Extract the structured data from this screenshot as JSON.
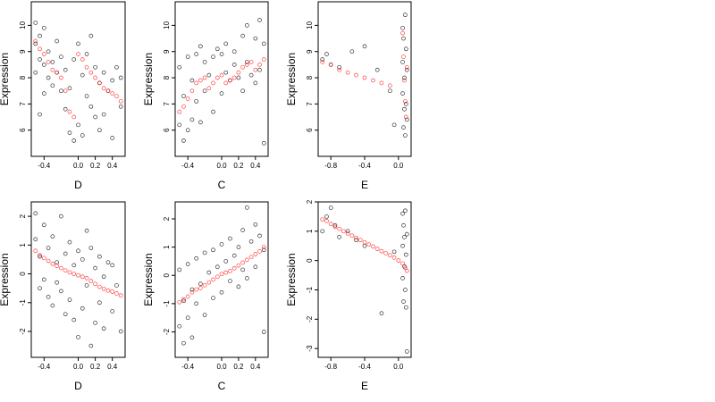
{
  "chart_data": [
    {
      "type": "scatter",
      "xlabel": "D",
      "ylabel": "Expression",
      "xlim": [
        -0.55,
        0.55
      ],
      "ylim": [
        5.0,
        10.9
      ],
      "xticks": [
        -0.4,
        0.0,
        0.2,
        0.4
      ],
      "xtick_labels": [
        "-0.4",
        "0.0",
        "0.2",
        "0.4"
      ],
      "yticks": [
        6,
        7,
        8,
        9,
        10
      ],
      "ytick_labels": [
        "6",
        "7",
        "8",
        "9",
        "10"
      ],
      "grid": false,
      "series": [
        {
          "color": "#000000",
          "marker": "open-circle",
          "x": [
            -0.5,
            -0.5,
            -0.5,
            -0.45,
            -0.45,
            -0.45,
            -0.4,
            -0.4,
            -0.4,
            -0.35,
            -0.35,
            -0.3,
            -0.3,
            -0.25,
            -0.25,
            -0.2,
            -0.2,
            -0.15,
            -0.15,
            -0.1,
            -0.1,
            -0.05,
            -0.05,
            0.0,
            0.0,
            0.05,
            0.05,
            0.1,
            0.1,
            0.15,
            0.15,
            0.2,
            0.2,
            0.25,
            0.25,
            0.3,
            0.3,
            0.35,
            0.4,
            0.4,
            0.45,
            0.5,
            0.5
          ],
          "y": [
            9.3,
            10.1,
            8.2,
            9.6,
            8.7,
            6.6,
            9.9,
            8.5,
            7.4,
            9.0,
            8.0,
            8.6,
            7.7,
            9.4,
            8.2,
            8.8,
            7.5,
            8.3,
            6.8,
            7.6,
            5.9,
            8.7,
            5.6,
            9.3,
            6.2,
            8.1,
            5.8,
            8.9,
            7.3,
            9.6,
            6.9,
            8.4,
            6.5,
            7.8,
            6.0,
            8.2,
            6.6,
            7.5,
            7.9,
            5.7,
            8.4,
            8.0,
            6.9
          ]
        },
        {
          "color": "#ff0000",
          "marker": "open-circle",
          "x": [
            -0.5,
            -0.45,
            -0.4,
            -0.35,
            -0.3,
            -0.25,
            -0.2,
            -0.15,
            -0.1,
            -0.05,
            0.0,
            0.05,
            0.1,
            0.15,
            0.2,
            0.25,
            0.3,
            0.35,
            0.4,
            0.45,
            0.5
          ],
          "y": [
            9.4,
            9.1,
            8.9,
            8.6,
            8.3,
            8.2,
            8.0,
            7.5,
            6.7,
            6.5,
            8.9,
            8.7,
            8.4,
            8.2,
            8.0,
            7.8,
            7.6,
            7.5,
            7.4,
            7.3,
            7.1
          ]
        }
      ]
    },
    {
      "type": "scatter",
      "xlabel": "C",
      "ylabel": "Expression",
      "xlim": [
        -0.55,
        0.55
      ],
      "ylim": [
        5.0,
        10.9
      ],
      "xticks": [
        -0.4,
        0.0,
        0.2,
        0.4
      ],
      "xtick_labels": [
        "-0.4",
        "0.0",
        "0.2",
        "0.4"
      ],
      "yticks": [
        6,
        7,
        8,
        9,
        10
      ],
      "ytick_labels": [
        "6",
        "7",
        "8",
        "9",
        "10"
      ],
      "grid": false,
      "series": [
        {
          "color": "#000000",
          "marker": "open-circle",
          "x": [
            -0.5,
            -0.5,
            -0.45,
            -0.45,
            -0.4,
            -0.4,
            -0.35,
            -0.35,
            -0.3,
            -0.3,
            -0.25,
            -0.25,
            -0.2,
            -0.2,
            -0.15,
            -0.1,
            -0.1,
            -0.05,
            0.0,
            0.0,
            0.05,
            0.05,
            0.1,
            0.15,
            0.15,
            0.2,
            0.25,
            0.25,
            0.3,
            0.3,
            0.35,
            0.4,
            0.4,
            0.45,
            0.45,
            0.5,
            0.5
          ],
          "y": [
            6.2,
            8.4,
            5.6,
            7.3,
            6.0,
            8.8,
            6.4,
            7.9,
            7.1,
            8.9,
            6.3,
            9.2,
            7.5,
            8.6,
            8.1,
            6.7,
            8.8,
            9.1,
            7.4,
            8.9,
            8.2,
            9.3,
            7.9,
            8.5,
            9.0,
            8.0,
            7.5,
            9.6,
            8.6,
            10.0,
            8.1,
            7.8,
            9.5,
            8.3,
            10.2,
            5.5,
            9.3
          ]
        },
        {
          "color": "#ff0000",
          "marker": "open-circle",
          "x": [
            -0.5,
            -0.45,
            -0.4,
            -0.35,
            -0.3,
            -0.25,
            -0.2,
            -0.15,
            -0.1,
            -0.05,
            0.0,
            0.05,
            0.1,
            0.15,
            0.2,
            0.25,
            0.3,
            0.35,
            0.4,
            0.45,
            0.5
          ],
          "y": [
            6.7,
            6.9,
            7.2,
            7.5,
            7.8,
            7.9,
            8.0,
            7.6,
            7.8,
            8.0,
            8.1,
            7.8,
            7.9,
            8.0,
            8.2,
            8.4,
            8.5,
            8.6,
            8.3,
            8.5,
            8.7
          ]
        }
      ]
    },
    {
      "type": "scatter",
      "xlabel": "E",
      "ylabel": "Expression",
      "xlim": [
        -0.95,
        0.15
      ],
      "ylim": [
        5.0,
        10.9
      ],
      "xticks": [
        -0.8,
        -0.4,
        0.0
      ],
      "xtick_labels": [
        "-0.8",
        "-0.4",
        "0.0"
      ],
      "yticks": [
        6,
        7,
        8,
        9,
        10
      ],
      "ytick_labels": [
        "6",
        "7",
        "8",
        "9",
        "10"
      ],
      "grid": false,
      "series": [
        {
          "color": "#000000",
          "marker": "open-circle",
          "x": [
            -0.9,
            -0.85,
            -0.8,
            -0.7,
            -0.55,
            -0.4,
            -0.25,
            -0.1,
            -0.05,
            0.05,
            0.05,
            0.05,
            0.06,
            0.06,
            0.07,
            0.07,
            0.08,
            0.08,
            0.09,
            0.09,
            0.1,
            0.1
          ],
          "y": [
            8.7,
            8.9,
            8.5,
            8.4,
            9.0,
            9.2,
            8.3,
            7.5,
            6.2,
            9.9,
            8.6,
            7.4,
            6.1,
            9.5,
            8.0,
            6.8,
            10.4,
            5.8,
            9.1,
            7.0,
            8.3,
            6.4
          ]
        },
        {
          "color": "#ff0000",
          "marker": "open-circle",
          "x": [
            -0.9,
            -0.8,
            -0.7,
            -0.6,
            -0.5,
            -0.4,
            -0.3,
            -0.2,
            -0.1,
            0.05,
            0.06,
            0.07,
            0.08,
            0.09,
            0.1
          ],
          "y": [
            8.6,
            8.5,
            8.3,
            8.2,
            8.1,
            8.0,
            7.9,
            7.8,
            7.7,
            9.7,
            8.8,
            7.9,
            7.1,
            6.5,
            8.4
          ]
        }
      ]
    },
    {
      "type": "scatter",
      "xlabel": "D",
      "ylabel": "Expression",
      "xlim": [
        -0.55,
        0.55
      ],
      "ylim": [
        -2.9,
        2.5
      ],
      "xticks": [
        -0.4,
        0.0,
        0.2,
        0.4
      ],
      "xtick_labels": [
        "-0.4",
        "0.0",
        "0.2",
        "0.4"
      ],
      "yticks": [
        -2,
        -1,
        0,
        1,
        2
      ],
      "ytick_labels": [
        "-2",
        "-1",
        "0",
        "1",
        "2"
      ],
      "grid": false,
      "series": [
        {
          "color": "#000000",
          "marker": "open-circle",
          "x": [
            -0.5,
            -0.5,
            -0.45,
            -0.45,
            -0.4,
            -0.4,
            -0.35,
            -0.35,
            -0.3,
            -0.3,
            -0.25,
            -0.25,
            -0.2,
            -0.2,
            -0.15,
            -0.15,
            -0.1,
            -0.1,
            -0.05,
            -0.05,
            0.0,
            0.0,
            0.05,
            0.05,
            0.1,
            0.1,
            0.15,
            0.15,
            0.2,
            0.2,
            0.25,
            0.25,
            0.3,
            0.3,
            0.35,
            0.4,
            0.4,
            0.45,
            0.5
          ],
          "y": [
            2.1,
            1.2,
            0.6,
            -0.5,
            1.7,
            -0.2,
            0.9,
            -0.8,
            1.3,
            -1.1,
            0.4,
            -0.3,
            2.0,
            -0.6,
            0.7,
            -1.4,
            1.1,
            -0.9,
            0.3,
            -1.6,
            0.8,
            -2.2,
            0.5,
            -1.2,
            1.5,
            -0.4,
            0.9,
            -2.5,
            0.2,
            -1.7,
            0.6,
            -1.0,
            -0.1,
            -1.9,
            0.4,
            0.3,
            -1.3,
            -0.4,
            -2.0
          ]
        },
        {
          "color": "#ff0000",
          "marker": "open-circle",
          "x": [
            -0.5,
            -0.45,
            -0.4,
            -0.35,
            -0.3,
            -0.25,
            -0.2,
            -0.15,
            -0.1,
            -0.05,
            0.0,
            0.05,
            0.1,
            0.15,
            0.2,
            0.25,
            0.3,
            0.35,
            0.4,
            0.45,
            0.5
          ],
          "y": [
            0.8,
            0.65,
            0.55,
            0.45,
            0.35,
            0.28,
            0.2,
            0.12,
            0.05,
            0.0,
            -0.05,
            -0.1,
            -0.15,
            -0.25,
            -0.35,
            -0.45,
            -0.52,
            -0.58,
            -0.62,
            -0.68,
            -0.75
          ]
        }
      ]
    },
    {
      "type": "scatter",
      "xlabel": "C",
      "ylabel": "Expression",
      "xlim": [
        -0.55,
        0.55
      ],
      "ylim": [
        -2.9,
        2.6
      ],
      "xticks": [
        -0.4,
        0.0,
        0.2,
        0.4
      ],
      "xtick_labels": [
        "-0.4",
        "0.0",
        "0.2",
        "0.4"
      ],
      "yticks": [
        -2,
        -1,
        0,
        1,
        2
      ],
      "ytick_labels": [
        "-2",
        "-1",
        "0",
        "1",
        "2"
      ],
      "grid": false,
      "series": [
        {
          "color": "#000000",
          "marker": "open-circle",
          "x": [
            -0.5,
            -0.5,
            -0.45,
            -0.45,
            -0.4,
            -0.4,
            -0.35,
            -0.35,
            -0.3,
            -0.3,
            -0.25,
            -0.2,
            -0.2,
            -0.15,
            -0.1,
            -0.1,
            -0.05,
            0.0,
            0.0,
            0.05,
            0.1,
            0.1,
            0.15,
            0.2,
            0.2,
            0.25,
            0.25,
            0.3,
            0.3,
            0.35,
            0.4,
            0.4,
            0.45,
            0.5,
            0.5
          ],
          "y": [
            -1.8,
            0.2,
            -2.4,
            -0.9,
            -1.5,
            0.4,
            -2.2,
            -0.5,
            -1.0,
            0.6,
            -0.3,
            -1.4,
            0.8,
            0.1,
            -0.8,
            0.9,
            0.3,
            -0.6,
            1.1,
            0.5,
            -0.2,
            1.3,
            0.7,
            -0.4,
            1.0,
            0.2,
            1.6,
            -0.1,
            2.4,
            1.2,
            0.3,
            1.8,
            1.4,
            -2.0,
            0.9
          ]
        },
        {
          "color": "#ff0000",
          "marker": "open-circle",
          "x": [
            -0.5,
            -0.45,
            -0.4,
            -0.35,
            -0.3,
            -0.25,
            -0.2,
            -0.15,
            -0.1,
            -0.05,
            0.0,
            0.05,
            0.1,
            0.15,
            0.2,
            0.25,
            0.3,
            0.35,
            0.4,
            0.45,
            0.5
          ],
          "y": [
            -0.95,
            -0.85,
            -0.75,
            -0.6,
            -0.5,
            -0.45,
            -0.35,
            -0.25,
            -0.15,
            -0.05,
            0.05,
            0.1,
            0.15,
            0.25,
            0.35,
            0.45,
            0.55,
            0.65,
            0.75,
            0.85,
            1.0
          ]
        }
      ]
    },
    {
      "type": "scatter",
      "xlabel": "E",
      "ylabel": "Expression",
      "xlim": [
        -0.95,
        0.15
      ],
      "ylim": [
        -3.3,
        2.0
      ],
      "xticks": [
        -0.8,
        -0.4,
        0.0
      ],
      "xtick_labels": [
        "-0.8",
        "-0.4",
        "0.0"
      ],
      "yticks": [
        -3,
        -2,
        -1,
        0,
        1,
        2
      ],
      "ytick_labels": [
        "-3",
        "-2",
        "-1",
        "0",
        "1",
        "2"
      ],
      "grid": false,
      "series": [
        {
          "color": "#000000",
          "marker": "open-circle",
          "x": [
            -0.9,
            -0.85,
            -0.8,
            -0.75,
            -0.7,
            -0.6,
            -0.5,
            -0.4,
            -0.2,
            -0.05,
            0.05,
            0.05,
            0.05,
            0.06,
            0.06,
            0.07,
            0.07,
            0.08,
            0.08,
            0.09,
            0.09,
            0.1,
            0.1
          ],
          "y": [
            1.0,
            1.5,
            1.8,
            1.2,
            0.8,
            1.0,
            0.7,
            0.5,
            -1.8,
            0.3,
            1.6,
            0.5,
            -0.6,
            1.2,
            -1.4,
            0.8,
            -0.2,
            1.7,
            -1.0,
            0.2,
            -1.6,
            0.9,
            -3.1
          ]
        },
        {
          "color": "#ff0000",
          "marker": "open-circle",
          "x": [
            -0.9,
            -0.85,
            -0.8,
            -0.75,
            -0.7,
            -0.65,
            -0.6,
            -0.55,
            -0.5,
            -0.45,
            -0.4,
            -0.35,
            -0.3,
            -0.25,
            -0.2,
            -0.15,
            -0.1,
            -0.05,
            0.0,
            0.05,
            0.08,
            0.1
          ],
          "y": [
            1.4,
            1.35,
            1.25,
            1.15,
            1.08,
            1.0,
            0.92,
            0.85,
            0.78,
            0.7,
            0.62,
            0.55,
            0.48,
            0.4,
            0.32,
            0.25,
            0.18,
            0.1,
            0.0,
            -0.1,
            -0.25,
            -0.35
          ]
        }
      ]
    }
  ]
}
